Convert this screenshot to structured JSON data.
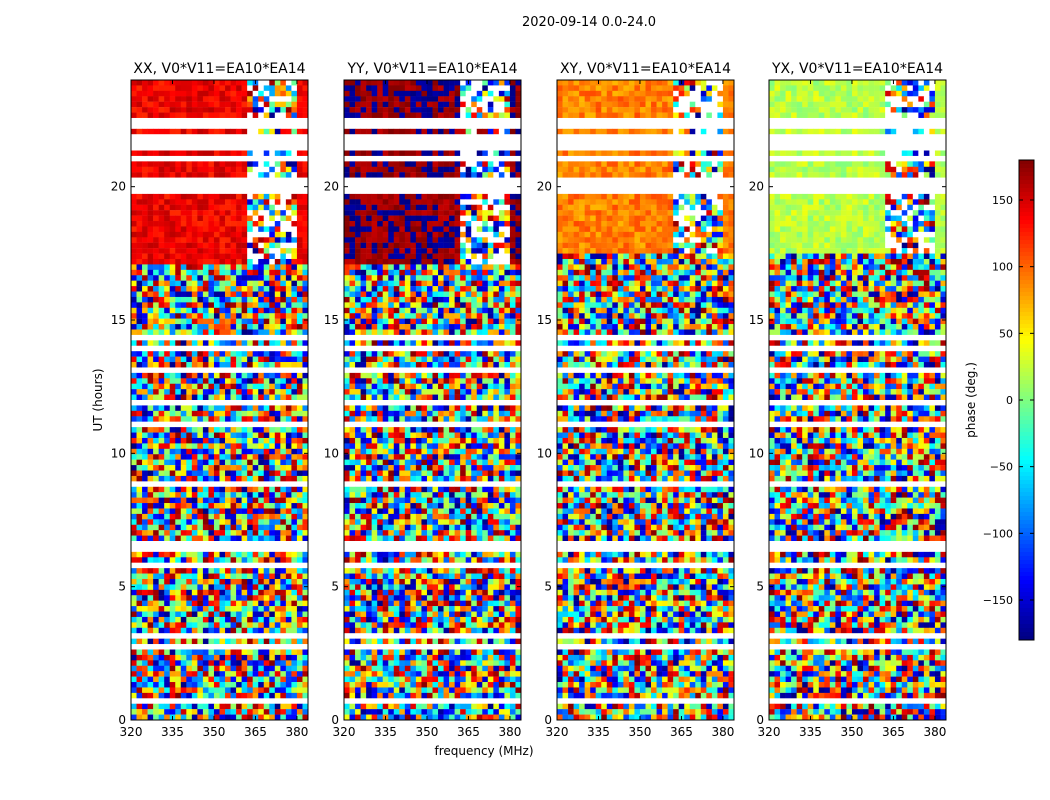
{
  "suptitle": "2020-09-14 0.0-24.0",
  "chart_data": {
    "type": "heatmap",
    "x_label": "frequency (MHz)",
    "y_label": "UT (hours)",
    "x_range": [
      320,
      384
    ],
    "y_range": [
      0,
      24
    ],
    "x_ticks": [
      320,
      335,
      350,
      365,
      380
    ],
    "y_ticks": [
      0,
      5,
      10,
      15,
      20
    ],
    "panels": [
      {
        "title": "XX, V0*V11=EA10*EA14",
        "polarization": "XX",
        "coherent_phase": 140,
        "coherent_until_mhz": 361,
        "coherent_from_ut": 17.0
      },
      {
        "title": "YY, V0*V11=EA10*EA14",
        "polarization": "YY",
        "coherent_phase": 175,
        "coherent_until_mhz": 361,
        "coherent_from_ut": 17.0
      },
      {
        "title": "XY, V0*V11=EA10*EA14",
        "polarization": "XY",
        "coherent_phase": 90,
        "coherent_until_mhz": 361,
        "coherent_from_ut": 17.5
      },
      {
        "title": "YX, V0*V11=EA10*EA14",
        "polarization": "YX",
        "coherent_phase": 20,
        "coherent_until_mhz": 361,
        "coherent_from_ut": 17.5
      }
    ],
    "colorbar": {
      "label": "phase (deg.)",
      "range": [
        -180,
        180
      ],
      "ticks": [
        150,
        100,
        50,
        0,
        -50,
        -100,
        -150
      ],
      "colormap": "jet"
    },
    "blank_time_ranges_ut": [
      [
        20.85,
        21.2
      ],
      [
        21.35,
        22.0
      ],
      [
        22.1,
        22.5
      ],
      [
        19.75,
        19.95
      ],
      [
        19.95,
        20.3
      ],
      [
        5.65,
        5.85
      ],
      [
        6.55,
        6.75
      ],
      [
        10.55,
        10.65
      ],
      [
        13.05,
        13.15
      ]
    ]
  }
}
